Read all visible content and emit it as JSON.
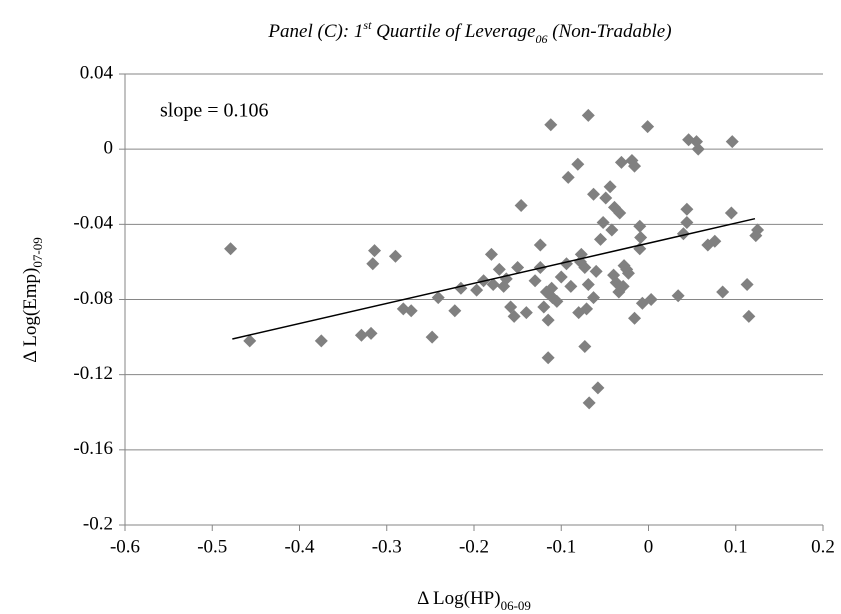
{
  "chart_data": {
    "type": "scatter",
    "title": [
      "Panel (C): 1",
      "st",
      " Quartile of Leverage",
      "06",
      " (Non-Tradable)"
    ],
    "x_label": [
      "Δ Log(HP)",
      "06-09"
    ],
    "y_label": [
      "Δ Log(Emp)",
      "07-09"
    ],
    "annotation": "slope = 0.106",
    "color": "#808080",
    "grid": true,
    "xlim": [
      -0.6,
      0.2
    ],
    "xticks": [
      -0.6,
      -0.5,
      -0.4,
      -0.3,
      -0.2,
      -0.1,
      0,
      0.1,
      0.2
    ],
    "ylim": [
      -0.2,
      0.04
    ],
    "yticks": [
      0.04,
      0,
      -0.04,
      -0.08,
      -0.12,
      -0.16,
      -0.2
    ],
    "trendline": {
      "x": [
        -0.477,
        0.122
      ],
      "y": [
        -0.101,
        -0.037
      ],
      "color": "#000000"
    },
    "x": [
      -0.479,
      -0.457,
      -0.375,
      -0.314,
      -0.316,
      -0.329,
      -0.318,
      -0.29,
      -0.281,
      -0.272,
      -0.248,
      -0.241,
      -0.222,
      -0.215,
      -0.197,
      -0.189,
      -0.178,
      -0.171,
      -0.18,
      -0.163,
      -0.166,
      -0.158,
      -0.154,
      -0.15,
      -0.146,
      -0.14,
      -0.13,
      -0.124,
      -0.12,
      -0.117,
      -0.124,
      -0.115,
      -0.111,
      -0.11,
      -0.115,
      -0.112,
      -0.105,
      -0.1,
      -0.094,
      -0.092,
      -0.089,
      -0.081,
      -0.077,
      -0.078,
      -0.08,
      -0.073,
      -0.071,
      -0.073,
      -0.069,
      -0.068,
      -0.069,
      -0.063,
      -0.06,
      -0.063,
      -0.058,
      -0.055,
      -0.052,
      -0.049,
      -0.044,
      -0.042,
      -0.04,
      -0.039,
      -0.037,
      -0.033,
      -0.034,
      -0.031,
      -0.028,
      -0.029,
      -0.025,
      -0.023,
      -0.019,
      -0.016,
      -0.016,
      -0.01,
      -0.01,
      -0.009,
      -0.007,
      -0.001,
      0.003,
      0.034,
      0.04,
      0.044,
      0.044,
      0.046,
      0.055,
      0.057,
      0.068,
      0.076,
      0.085,
      0.096,
      0.095,
      0.113,
      0.115,
      0.123,
      0.125
    ],
    "y": [
      -0.053,
      -0.102,
      -0.102,
      -0.054,
      -0.061,
      -0.099,
      -0.098,
      -0.057,
      -0.085,
      -0.086,
      -0.1,
      -0.079,
      -0.086,
      -0.074,
      -0.075,
      -0.07,
      -0.072,
      -0.064,
      -0.056,
      -0.069,
      -0.073,
      -0.084,
      -0.089,
      -0.063,
      -0.03,
      -0.087,
      -0.07,
      -0.063,
      -0.084,
      -0.076,
      -0.051,
      -0.091,
      -0.074,
      -0.079,
      -0.111,
      0.013,
      -0.081,
      -0.068,
      -0.061,
      -0.015,
      -0.073,
      -0.008,
      -0.056,
      -0.06,
      -0.087,
      -0.063,
      -0.085,
      -0.105,
      0.018,
      -0.135,
      -0.072,
      -0.079,
      -0.065,
      -0.024,
      -0.127,
      -0.048,
      -0.039,
      -0.026,
      -0.02,
      -0.043,
      -0.067,
      -0.031,
      -0.071,
      -0.034,
      -0.076,
      -0.007,
      -0.062,
      -0.073,
      -0.064,
      -0.066,
      -0.006,
      -0.009,
      -0.09,
      -0.053,
      -0.041,
      -0.047,
      -0.082,
      0.012,
      -0.08,
      -0.078,
      -0.045,
      -0.032,
      -0.039,
      0.005,
      0.004,
      0,
      -0.051,
      -0.049,
      -0.076,
      0.004,
      -0.034,
      -0.072,
      -0.089,
      -0.046,
      -0.043
    ]
  }
}
